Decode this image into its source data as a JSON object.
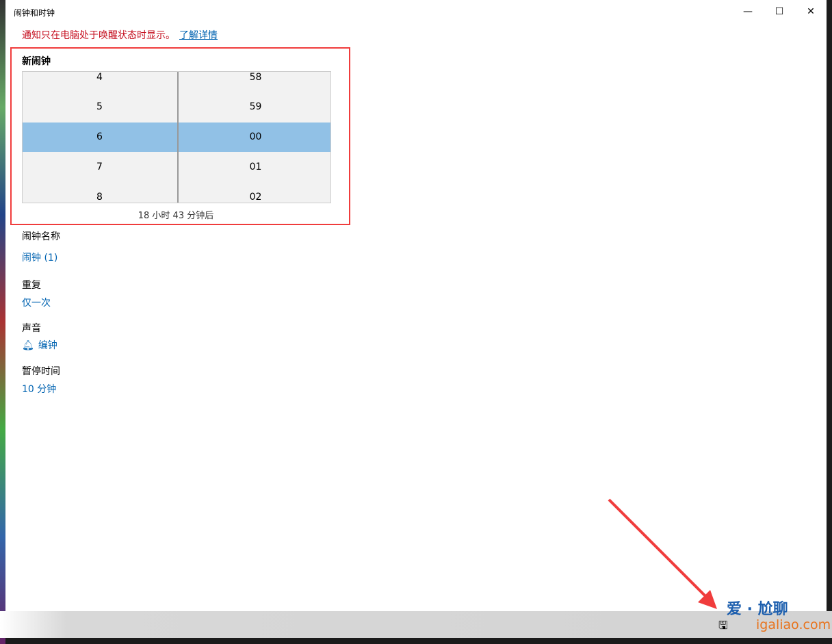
{
  "window": {
    "title": "闹钟和时钟",
    "minimize": "—",
    "maximize": "☐",
    "close": "✕"
  },
  "notice": {
    "text": "通知只在电脑处于唤醒状态时显示。",
    "link": "了解详情",
    "color": "#c50f1f"
  },
  "alarm": {
    "heading": "新闹钟",
    "hours": [
      "4",
      "5",
      "6",
      "7",
      "8"
    ],
    "minutes": [
      "58",
      "59",
      "00",
      "01",
      "02"
    ],
    "selected_hour": "6",
    "selected_minute": "00",
    "eta": "18 小时 43 分钟后"
  },
  "fields": {
    "name_label": "闹钟名称",
    "name_value": "闹钟 (1)",
    "repeat_label": "重复",
    "repeat_value": "仅一次",
    "sound_label": "声音",
    "sound_value": "编钟",
    "snooze_label": "暂停时间",
    "snooze_value": "10 分钟"
  },
  "footer": {
    "save_icon": "save-icon"
  },
  "watermark": {
    "cn": "爱 · 尬聊",
    "en": "igaliao.com"
  }
}
